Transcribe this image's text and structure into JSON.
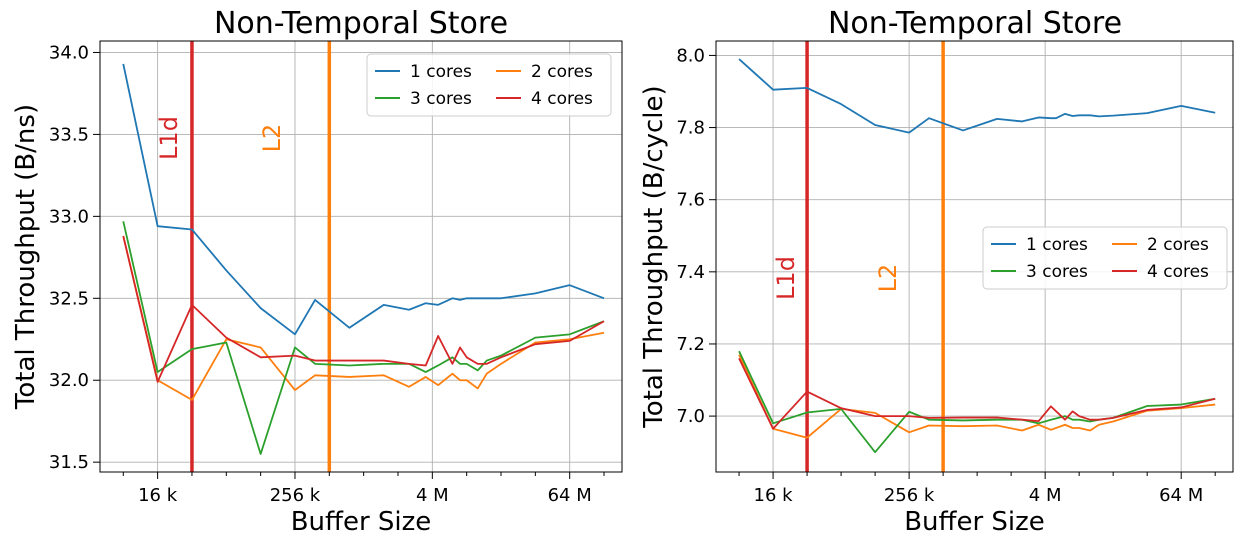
{
  "colors": {
    "c1": "#1f77b4",
    "c2": "#ff7f0e",
    "c3": "#2ca02c",
    "c4": "#d62728",
    "l1d": "#d62728",
    "l2": "#ff7f0e",
    "grid": "#b0b0b0"
  },
  "chart_data": [
    {
      "type": "line",
      "title": "Non-Temporal Store",
      "xlabel": "Buffer Size",
      "ylabel": "Total Throughput (B/ns)",
      "xscale": "log2",
      "xticks": [
        "16 k",
        "256 k",
        "4 M",
        "64 M"
      ],
      "yticks": [
        "31.5",
        "32.0",
        "32.5",
        "33.0",
        "33.5",
        "34.0"
      ],
      "ylim": [
        31.44,
        34.07
      ],
      "grid": true,
      "legend": "top-right",
      "legend_ncol": 2,
      "vlines": [
        {
          "label": "L1d",
          "x": "32 k",
          "color": "#d62728"
        },
        {
          "label": "L2",
          "x": "512 k",
          "color": "#ff7f0e"
        }
      ],
      "series": [
        {
          "name": "1 cores",
          "color": "#1f77b4",
          "x": [
            "8 k",
            "16 k",
            "32 k",
            "64 k",
            "128 k",
            "256 k",
            "384 k",
            "768 k",
            "1.5 M",
            "2.5 M",
            "3.5 M",
            "4.5 M",
            "6 M",
            "7 M",
            "8 M",
            "10 M",
            "12 M",
            "16 M",
            "32 M",
            "64 M",
            "128 M"
          ],
          "values": [
            33.93,
            32.94,
            32.92,
            32.67,
            32.44,
            32.28,
            32.49,
            32.32,
            32.46,
            32.43,
            32.47,
            32.46,
            32.5,
            32.49,
            32.5,
            32.5,
            32.5,
            32.5,
            32.53,
            32.58,
            32.5
          ]
        },
        {
          "name": "2 cores",
          "color": "#ff7f0e",
          "x": [
            "8 k",
            "16 k",
            "32 k",
            "64 k",
            "128 k",
            "256 k",
            "384 k",
            "768 k",
            "1.5 M",
            "2.5 M",
            "3.5 M",
            "4.5 M",
            "6 M",
            "7 M",
            "8 M",
            "10 M",
            "12 M",
            "16 M",
            "32 M",
            "64 M",
            "128 M"
          ],
          "values": [
            32.88,
            32.0,
            31.88,
            32.25,
            32.2,
            31.94,
            32.03,
            32.02,
            32.03,
            31.96,
            32.02,
            31.97,
            32.04,
            32.0,
            32.0,
            31.95,
            32.04,
            32.1,
            32.23,
            32.25,
            32.29
          ]
        },
        {
          "name": "3 cores",
          "color": "#2ca02c",
          "x": [
            "8 k",
            "16 k",
            "32 k",
            "64 k",
            "128 k",
            "256 k",
            "384 k",
            "768 k",
            "1.5 M",
            "2.5 M",
            "3.5 M",
            "4.5 M",
            "6 M",
            "7 M",
            "8 M",
            "10 M",
            "12 M",
            "16 M",
            "32 M",
            "64 M",
            "128 M"
          ],
          "values": [
            32.97,
            32.05,
            32.19,
            32.23,
            31.55,
            32.2,
            32.1,
            32.09,
            32.1,
            32.1,
            32.05,
            32.09,
            32.14,
            32.1,
            32.1,
            32.06,
            32.12,
            32.15,
            32.26,
            32.28,
            32.36
          ]
        },
        {
          "name": "4 cores",
          "color": "#d62728",
          "x": [
            "8 k",
            "16 k",
            "32 k",
            "64 k",
            "128 k",
            "256 k",
            "384 k",
            "768 k",
            "1.5 M",
            "2.5 M",
            "3.5 M",
            "4.5 M",
            "6 M",
            "7 M",
            "8 M",
            "10 M",
            "12 M",
            "16 M",
            "32 M",
            "64 M",
            "128 M"
          ],
          "values": [
            32.88,
            31.99,
            32.46,
            32.26,
            32.14,
            32.15,
            32.12,
            32.12,
            32.12,
            32.1,
            32.09,
            32.27,
            32.1,
            32.2,
            32.14,
            32.1,
            32.1,
            32.14,
            32.22,
            32.24,
            32.36
          ]
        }
      ]
    },
    {
      "type": "line",
      "title": "Non-Temporal Store",
      "xlabel": "Buffer Size",
      "ylabel": "Total Throughput (B/cycle)",
      "xscale": "log2",
      "xticks": [
        "16 k",
        "256 k",
        "4 M",
        "64 M"
      ],
      "yticks": [
        "7.0",
        "7.2",
        "7.4",
        "7.6",
        "7.8",
        "8.0"
      ],
      "ylim": [
        6.845,
        8.04
      ],
      "grid": true,
      "legend": "center-right",
      "legend_ncol": 2,
      "vlines": [
        {
          "label": "L1d",
          "x": "32 k",
          "color": "#d62728"
        },
        {
          "label": "L2",
          "x": "512 k",
          "color": "#ff7f0e"
        }
      ],
      "series": [
        {
          "name": "1 cores",
          "color": "#1f77b4",
          "x": [
            "8 k",
            "16 k",
            "32 k",
            "64 k",
            "128 k",
            "256 k",
            "384 k",
            "768 k",
            "1.5 M",
            "2.5 M",
            "3.5 M",
            "4.5 M",
            "5 M",
            "6 M",
            "7 M",
            "8 M",
            "10 M",
            "12 M",
            "16 M",
            "32 M",
            "64 M",
            "128 M"
          ],
          "values": [
            7.99,
            7.905,
            7.91,
            7.865,
            7.807,
            7.786,
            7.826,
            7.792,
            7.824,
            7.817,
            7.828,
            7.826,
            7.826,
            7.838,
            7.832,
            7.834,
            7.834,
            7.831,
            7.833,
            7.84,
            7.86,
            7.841
          ]
        },
        {
          "name": "2 cores",
          "color": "#ff7f0e",
          "x": [
            "8 k",
            "16 k",
            "32 k",
            "64 k",
            "128 k",
            "256 k",
            "384 k",
            "768 k",
            "1.5 M",
            "2.5 M",
            "3.5 M",
            "4.5 M",
            "6 M",
            "7 M",
            "8 M",
            "10 M",
            "12 M",
            "16 M",
            "32 M",
            "64 M",
            "128 M"
          ],
          "values": [
            7.17,
            6.965,
            6.94,
            7.02,
            7.009,
            6.955,
            6.974,
            6.972,
            6.974,
            6.96,
            6.976,
            6.962,
            6.976,
            6.967,
            6.967,
            6.96,
            6.976,
            6.985,
            7.015,
            7.022,
            7.032
          ]
        },
        {
          "name": "3 cores",
          "color": "#2ca02c",
          "x": [
            "8 k",
            "16 k",
            "32 k",
            "64 k",
            "128 k",
            "256 k",
            "384 k",
            "768 k",
            "1.5 M",
            "2.5 M",
            "3.5 M",
            "4.5 M",
            "6 M",
            "7 M",
            "8 M",
            "10 M",
            "12 M",
            "16 M",
            "32 M",
            "64 M",
            "128 M"
          ],
          "values": [
            7.18,
            6.98,
            7.01,
            7.02,
            6.9,
            7.012,
            6.99,
            6.988,
            6.99,
            6.99,
            6.98,
            6.99,
            7.0,
            6.99,
            6.99,
            6.985,
            6.99,
            6.995,
            7.028,
            7.032,
            7.048
          ]
        },
        {
          "name": "4 cores",
          "color": "#d62728",
          "x": [
            "8 k",
            "16 k",
            "32 k",
            "64 k",
            "128 k",
            "256 k",
            "384 k",
            "768 k",
            "1.5 M",
            "2.5 M",
            "3.5 M",
            "4.5 M",
            "6 M",
            "7 M",
            "8 M",
            "10 M",
            "12 M",
            "16 M",
            "32 M",
            "64 M",
            "128 M"
          ],
          "values": [
            7.16,
            6.965,
            7.068,
            7.022,
            7.0,
            7.0,
            6.995,
            6.996,
            6.996,
            6.99,
            6.986,
            7.027,
            6.99,
            7.013,
            7.0,
            6.99,
            6.99,
            6.995,
            7.017,
            7.024,
            7.048
          ]
        }
      ]
    }
  ]
}
